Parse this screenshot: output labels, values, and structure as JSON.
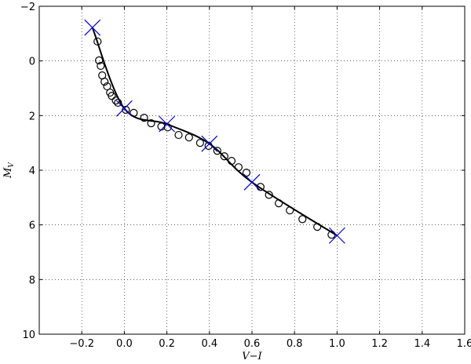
{
  "chart_data": {
    "type": "scatter",
    "title": "",
    "xlabel": "V−I",
    "ylabel_main": "M",
    "ylabel_sub": "V",
    "xlim": [
      -0.4,
      1.6
    ],
    "ylim": [
      10,
      -2
    ],
    "y_inverted": true,
    "grid": true,
    "xticks": [
      -0.2,
      0.0,
      0.2,
      0.4,
      0.6,
      0.8,
      1.0,
      1.2,
      1.4,
      1.6
    ],
    "xtick_labels": [
      "−0.2",
      "0.0",
      "0.2",
      "0.4",
      "0.6",
      "0.8",
      "1.0",
      "1.2",
      "1.4",
      "1.6"
    ],
    "yticks": [
      -2,
      0,
      2,
      4,
      6,
      8,
      10
    ],
    "ytick_labels": [
      "−2",
      "0",
      "2",
      "4",
      "6",
      "8",
      "10"
    ],
    "series": [
      {
        "kind": "open-circles",
        "color": "#000000",
        "points": [
          [
            -0.126,
            -0.71
          ],
          [
            -0.119,
            -0.02
          ],
          [
            -0.111,
            0.18
          ],
          [
            -0.104,
            0.53
          ],
          [
            -0.093,
            0.76
          ],
          [
            -0.081,
            0.93
          ],
          [
            -0.067,
            1.16
          ],
          [
            -0.059,
            1.28
          ],
          [
            -0.04,
            1.45
          ],
          [
            -0.03,
            1.53
          ],
          [
            0.007,
            1.79
          ],
          [
            0.044,
            1.9
          ],
          [
            0.093,
            2.08
          ],
          [
            0.126,
            2.28
          ],
          [
            0.174,
            2.4
          ],
          [
            0.204,
            2.43
          ],
          [
            0.255,
            2.71
          ],
          [
            0.304,
            2.8
          ],
          [
            0.356,
            3.0
          ],
          [
            0.396,
            3.11
          ],
          [
            0.437,
            3.29
          ],
          [
            0.47,
            3.49
          ],
          [
            0.504,
            3.66
          ],
          [
            0.537,
            3.89
          ],
          [
            0.574,
            4.09
          ],
          [
            0.64,
            4.61
          ],
          [
            0.68,
            4.9
          ],
          [
            0.726,
            5.21
          ],
          [
            0.778,
            5.47
          ],
          [
            0.837,
            5.79
          ],
          [
            0.907,
            6.07
          ],
          [
            0.974,
            6.36
          ]
        ]
      },
      {
        "kind": "cross-markers",
        "color": "#0000cc",
        "points": [
          [
            -0.15,
            -1.22
          ],
          [
            0.0,
            1.74
          ],
          [
            0.2,
            2.31
          ],
          [
            0.4,
            3.03
          ],
          [
            0.6,
            4.44
          ],
          [
            1.0,
            6.39
          ]
        ]
      },
      {
        "kind": "line",
        "color": "#000000",
        "points": [
          [
            -0.15,
            -1.22
          ],
          [
            0.0,
            1.74
          ],
          [
            0.2,
            2.31
          ],
          [
            0.4,
            3.03
          ],
          [
            0.6,
            4.44
          ],
          [
            1.0,
            6.39
          ]
        ]
      }
    ]
  }
}
